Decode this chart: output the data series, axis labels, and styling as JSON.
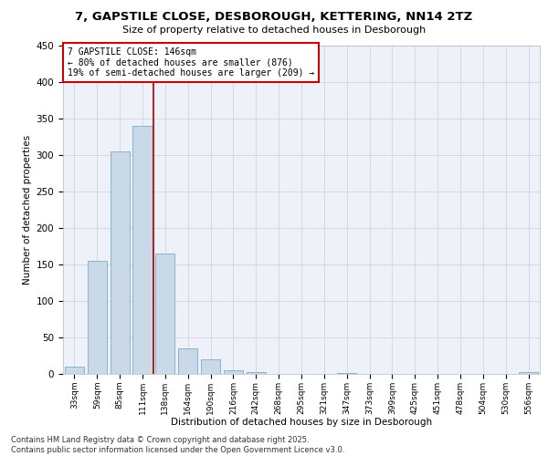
{
  "title": "7, GAPSTILE CLOSE, DESBOROUGH, KETTERING, NN14 2TZ",
  "subtitle": "Size of property relative to detached houses in Desborough",
  "xlabel": "Distribution of detached houses by size in Desborough",
  "ylabel": "Number of detached properties",
  "footer": "Contains HM Land Registry data © Crown copyright and database right 2025.\nContains public sector information licensed under the Open Government Licence v3.0.",
  "bar_color": "#c9d9e8",
  "bar_edge_color": "#7aaac8",
  "annotation_box_text": "7 GAPSTILE CLOSE: 146sqm\n← 80% of detached houses are smaller (876)\n19% of semi-detached houses are larger (209) →",
  "property_line_color": "#aa0000",
  "property_line_x": 3.5,
  "categories": [
    "33sqm",
    "59sqm",
    "85sqm",
    "111sqm",
    "138sqm",
    "164sqm",
    "190sqm",
    "216sqm",
    "242sqm",
    "268sqm",
    "295sqm",
    "321sqm",
    "347sqm",
    "373sqm",
    "399sqm",
    "425sqm",
    "451sqm",
    "478sqm",
    "504sqm",
    "530sqm",
    "556sqm"
  ],
  "values": [
    10,
    155,
    305,
    340,
    165,
    35,
    20,
    5,
    3,
    0,
    0,
    0,
    1,
    0,
    0,
    0,
    0,
    0,
    0,
    0,
    2
  ],
  "ylim": [
    0,
    450
  ],
  "yticks": [
    0,
    50,
    100,
    150,
    200,
    250,
    300,
    350,
    400,
    450
  ],
  "background_color": "#eef2f8"
}
